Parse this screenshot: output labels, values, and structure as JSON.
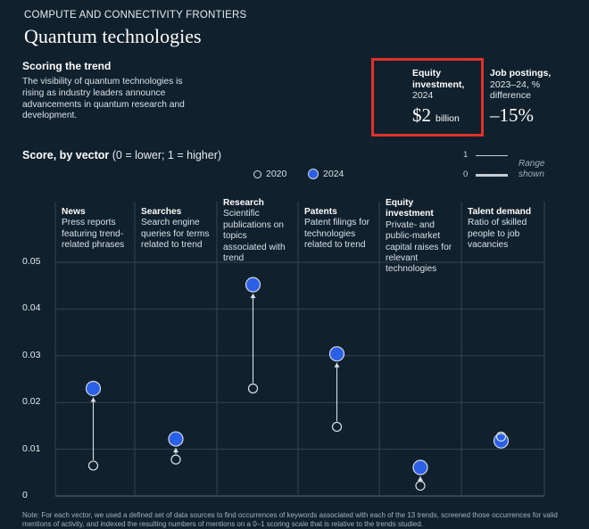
{
  "header": {
    "section": "COMPUTE AND CONNECTIVITY FRONTIERS",
    "title": "Quantum technologies"
  },
  "trend": {
    "heading": "Scoring the trend",
    "body": "The visibility of quantum technologies is rising as industry leaders announce advancements in quantum research and development."
  },
  "equity_investment": {
    "label_bold": "Equity investment,",
    "label_year": "2024",
    "value": "$2",
    "unit": "billion"
  },
  "job_postings": {
    "label_bold": "Job postings,",
    "label_rest": "2023–24, % difference",
    "value": "–15%"
  },
  "colors": {
    "background": "#10202d",
    "marker_2024": "#2b5fe6",
    "highlight_box": "#e0312b"
  },
  "chart_data": {
    "type": "scatter",
    "title": "Score, by vector",
    "subtitle": "(0 = lower; 1 = higher)",
    "legend": [
      "2020",
      "2024"
    ],
    "range_legend": {
      "high": "1",
      "low": "0",
      "label": "Range shown"
    },
    "ylim": [
      0,
      0.05
    ],
    "yticks": [
      "0",
      "0.01",
      "0.02",
      "0.03",
      "0.04",
      "0.05"
    ],
    "grid": true,
    "categories": [
      {
        "name": "News",
        "desc": "Press reports featuring trend-related phrases"
      },
      {
        "name": "Searches",
        "desc": "Search engine queries for terms related to trend"
      },
      {
        "name": "Research",
        "desc": "Scientific publications on topics associated with trend"
      },
      {
        "name": "Patents",
        "desc": "Patent filings for technologies related to trend"
      },
      {
        "name": "Equity investment",
        "desc": "Private- and public-market capital raises for relevant technologies"
      },
      {
        "name": "Talent demand",
        "desc": "Ratio of skilled people to job vacancies"
      }
    ],
    "series": [
      {
        "name": "2020",
        "values": [
          0.0065,
          0.0078,
          0.023,
          0.0148,
          0.0022,
          0.0127
        ]
      },
      {
        "name": "2024",
        "values": [
          0.023,
          0.0122,
          0.0452,
          0.0304,
          0.0061,
          0.0118
        ]
      }
    ]
  },
  "note": "Note: For each vector, we used a defined set of data sources to find occurrences of keywords associated with each of the 13 trends, screened those occurrences for valid mentions of activity, and indexed the resulting numbers of mentions on a 0–1 scoring scale that is relative to the trends studied."
}
